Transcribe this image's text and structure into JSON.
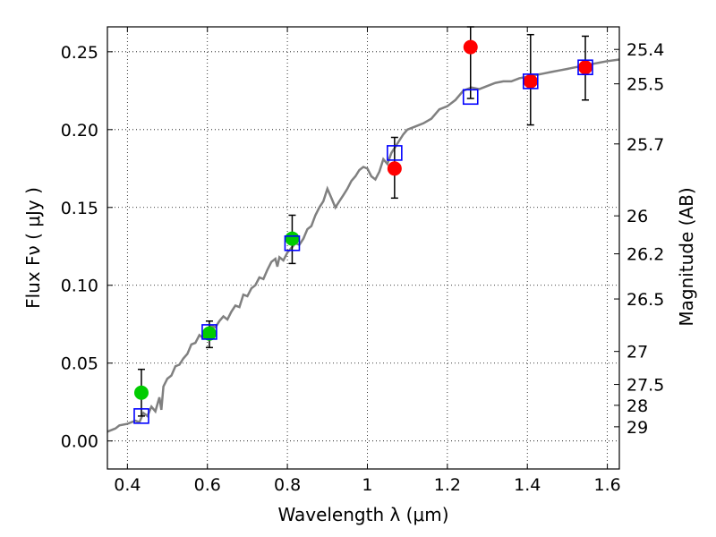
{
  "chart_data": {
    "type": "scatter",
    "title": "",
    "xlabel": "Wavelength  λ (μm)",
    "ylabel": "Flux  Fν  ( μJy )",
    "ylabel2": "Magnitude (AB)",
    "xlim": [
      0.35,
      1.63
    ],
    "ylim": [
      -0.018,
      0.266
    ],
    "grid": true,
    "x_ticks": [
      0.4,
      0.6,
      0.8,
      1.0,
      1.2,
      1.4,
      1.6
    ],
    "x_tick_labels": [
      "0.4",
      "0.6",
      "0.8",
      "1",
      "1.2",
      "1.4",
      "1.6"
    ],
    "y_ticks": [
      0.0,
      0.05,
      0.1,
      0.15,
      0.2,
      0.25
    ],
    "y_tick_labels": [
      "0.00",
      "0.05",
      "0.10",
      "0.15",
      "0.20",
      "0.25"
    ],
    "magnitude_ticks": [
      {
        "label": "25.4",
        "flux": 0.2515
      },
      {
        "label": "25.5",
        "flux": 0.2294
      },
      {
        "label": "25.7",
        "flux": 0.1908
      },
      {
        "label": "26",
        "flux": 0.1446
      },
      {
        "label": "26.2",
        "flux": 0.1202
      },
      {
        "label": "26.5",
        "flux": 0.0912
      },
      {
        "label": "27",
        "flux": 0.0575
      },
      {
        "label": "27.5",
        "flux": 0.0363
      },
      {
        "label": "28",
        "flux": 0.0229
      },
      {
        "label": "29",
        "flux": 0.0091
      }
    ],
    "series": [
      {
        "kind": "line",
        "color": "#808080",
        "points": [
          [
            0.35,
            0.006
          ],
          [
            0.37,
            0.008
          ],
          [
            0.38,
            0.01
          ],
          [
            0.4,
            0.011
          ],
          [
            0.42,
            0.013
          ],
          [
            0.43,
            0.012
          ],
          [
            0.44,
            0.018
          ],
          [
            0.45,
            0.016
          ],
          [
            0.46,
            0.022
          ],
          [
            0.47,
            0.019
          ],
          [
            0.48,
            0.028
          ],
          [
            0.485,
            0.02
          ],
          [
            0.49,
            0.035
          ],
          [
            0.5,
            0.04
          ],
          [
            0.51,
            0.042
          ],
          [
            0.52,
            0.048
          ],
          [
            0.53,
            0.049
          ],
          [
            0.54,
            0.053
          ],
          [
            0.55,
            0.056
          ],
          [
            0.56,
            0.062
          ],
          [
            0.57,
            0.063
          ],
          [
            0.58,
            0.068
          ],
          [
            0.59,
            0.066
          ],
          [
            0.6,
            0.07
          ],
          [
            0.61,
            0.074
          ],
          [
            0.62,
            0.073
          ],
          [
            0.63,
            0.077
          ],
          [
            0.64,
            0.08
          ],
          [
            0.65,
            0.078
          ],
          [
            0.66,
            0.083
          ],
          [
            0.67,
            0.087
          ],
          [
            0.68,
            0.086
          ],
          [
            0.69,
            0.094
          ],
          [
            0.7,
            0.093
          ],
          [
            0.71,
            0.098
          ],
          [
            0.72,
            0.1
          ],
          [
            0.73,
            0.105
          ],
          [
            0.74,
            0.104
          ],
          [
            0.75,
            0.11
          ],
          [
            0.76,
            0.115
          ],
          [
            0.77,
            0.117
          ],
          [
            0.775,
            0.112
          ],
          [
            0.78,
            0.118
          ],
          [
            0.79,
            0.116
          ],
          [
            0.8,
            0.121
          ],
          [
            0.81,
            0.124
          ],
          [
            0.82,
            0.127
          ],
          [
            0.83,
            0.126
          ],
          [
            0.84,
            0.13
          ],
          [
            0.85,
            0.136
          ],
          [
            0.86,
            0.138
          ],
          [
            0.87,
            0.145
          ],
          [
            0.88,
            0.15
          ],
          [
            0.89,
            0.154
          ],
          [
            0.9,
            0.162
          ],
          [
            0.91,
            0.156
          ],
          [
            0.92,
            0.15
          ],
          [
            0.93,
            0.154
          ],
          [
            0.94,
            0.158
          ],
          [
            0.95,
            0.162
          ],
          [
            0.96,
            0.167
          ],
          [
            0.97,
            0.17
          ],
          [
            0.98,
            0.174
          ],
          [
            0.99,
            0.176
          ],
          [
            1.0,
            0.175
          ],
          [
            1.01,
            0.17
          ],
          [
            1.02,
            0.168
          ],
          [
            1.03,
            0.173
          ],
          [
            1.04,
            0.181
          ],
          [
            1.05,
            0.178
          ],
          [
            1.06,
            0.185
          ],
          [
            1.07,
            0.189
          ],
          [
            1.08,
            0.193
          ],
          [
            1.09,
            0.197
          ],
          [
            1.1,
            0.2
          ],
          [
            1.12,
            0.202
          ],
          [
            1.14,
            0.204
          ],
          [
            1.16,
            0.207
          ],
          [
            1.18,
            0.213
          ],
          [
            1.2,
            0.215
          ],
          [
            1.22,
            0.219
          ],
          [
            1.24,
            0.225
          ],
          [
            1.26,
            0.227
          ],
          [
            1.28,
            0.226
          ],
          [
            1.3,
            0.228
          ],
          [
            1.32,
            0.23
          ],
          [
            1.34,
            0.231
          ],
          [
            1.36,
            0.231
          ],
          [
            1.38,
            0.233
          ],
          [
            1.4,
            0.234
          ],
          [
            1.42,
            0.235
          ],
          [
            1.44,
            0.236
          ],
          [
            1.46,
            0.237
          ],
          [
            1.48,
            0.238
          ],
          [
            1.5,
            0.239
          ],
          [
            1.52,
            0.24
          ],
          [
            1.54,
            0.241
          ],
          [
            1.56,
            0.242
          ],
          [
            1.58,
            0.243
          ],
          [
            1.6,
            0.244
          ],
          [
            1.63,
            0.245
          ]
        ]
      },
      {
        "kind": "square",
        "color": "#0000ff",
        "points": [
          [
            0.435,
            0.016
          ],
          [
            0.605,
            0.07
          ],
          [
            0.812,
            0.127
          ],
          [
            1.068,
            0.185
          ],
          [
            1.258,
            0.221
          ],
          [
            1.408,
            0.231
          ],
          [
            1.545,
            0.24
          ]
        ]
      },
      {
        "kind": "errorbar",
        "color": "#00cc00",
        "points": [
          {
            "x": 0.435,
            "y": 0.031,
            "lo": 0.016,
            "hi": 0.046
          },
          {
            "x": 0.605,
            "y": 0.069,
            "lo": 0.06,
            "hi": 0.077
          },
          {
            "x": 0.812,
            "y": 0.13,
            "lo": 0.114,
            "hi": 0.145
          }
        ]
      },
      {
        "kind": "errorbar",
        "color": "#ff0000",
        "points": [
          {
            "x": 1.068,
            "y": 0.175,
            "lo": 0.156,
            "hi": 0.195
          },
          {
            "x": 1.258,
            "y": 0.253,
            "lo": 0.22,
            "hi": 0.266
          },
          {
            "x": 1.408,
            "y": 0.231,
            "lo": 0.203,
            "hi": 0.261
          },
          {
            "x": 1.545,
            "y": 0.24,
            "lo": 0.219,
            "hi": 0.26
          }
        ]
      }
    ]
  }
}
